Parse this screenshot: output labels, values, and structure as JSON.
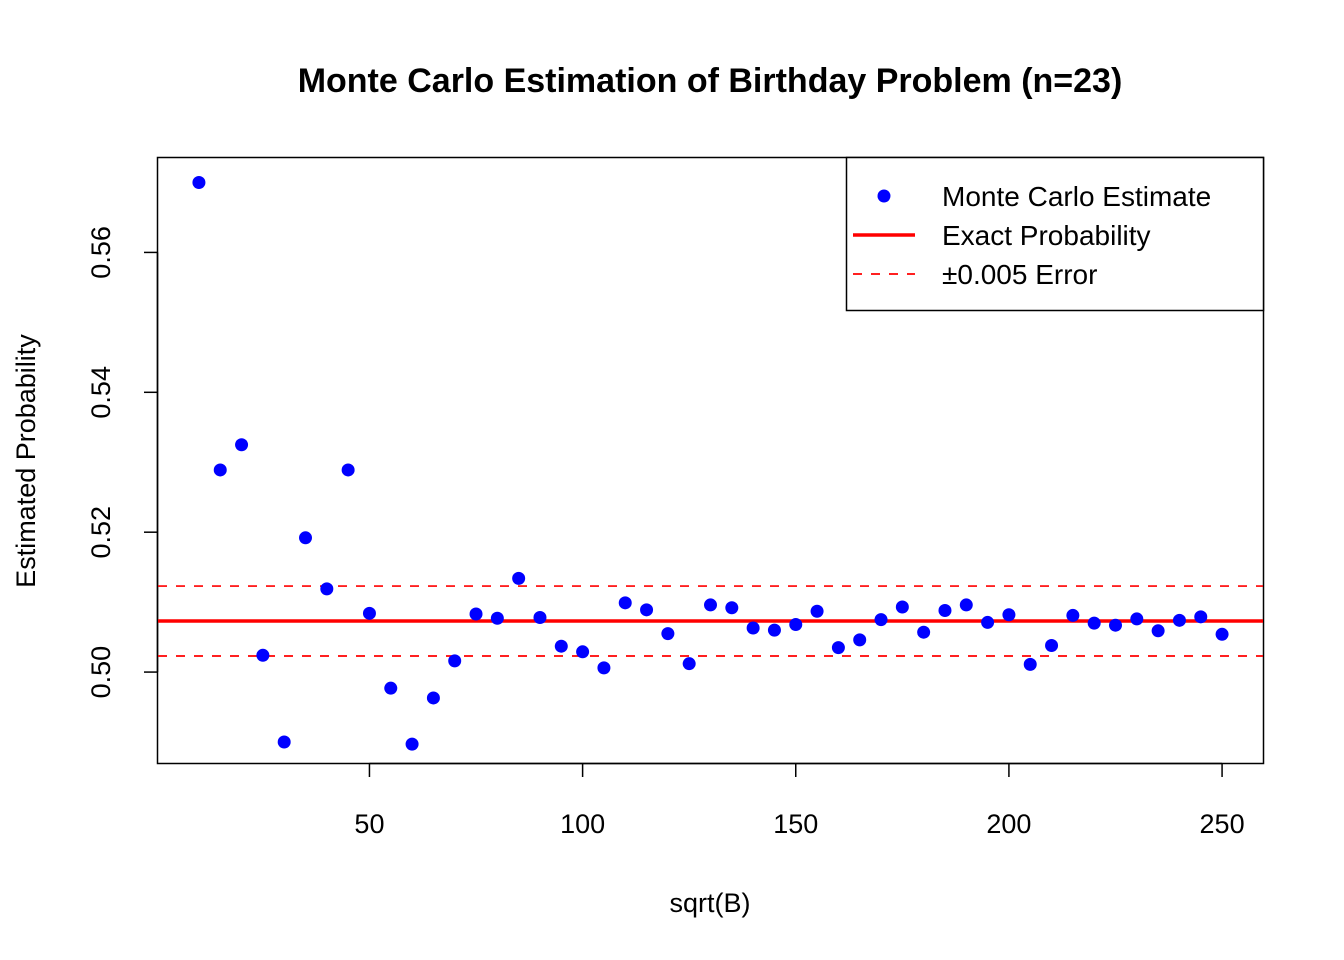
{
  "colors": {
    "points": "#0000ff",
    "exact_line": "#ff0000",
    "error_lines": "#ff0000",
    "axes": "#000000"
  },
  "chart_data": {
    "type": "scatter",
    "title": "Monte Carlo Estimation of Birthday Problem (n=23)",
    "xlabel": "sqrt(B)",
    "ylabel": "Estimated Probability",
    "xlim": [
      0.4,
      259.6
    ],
    "ylim": [
      0.487,
      0.5735
    ],
    "xticks": [
      50,
      100,
      150,
      200,
      250
    ],
    "yticks": [
      0.5,
      0.52,
      0.54,
      0.56
    ],
    "xtick_labels": [
      "50",
      "100",
      "150",
      "200",
      "250"
    ],
    "ytick_labels": [
      "0.50",
      "0.52",
      "0.54",
      "0.56"
    ],
    "grid": false,
    "legend_position": "top-right",
    "series": [
      {
        "name": "Monte Carlo Estimate",
        "kind": "points",
        "color": "#0000ff",
        "x": [
          10,
          15,
          20,
          25,
          30,
          35,
          40,
          45,
          50,
          55,
          60,
          65,
          70,
          75,
          80,
          85,
          90,
          95,
          100,
          105,
          110,
          115,
          120,
          125,
          130,
          135,
          140,
          145,
          150,
          155,
          160,
          165,
          170,
          175,
          180,
          185,
          190,
          195,
          200,
          205,
          210,
          215,
          220,
          225,
          230,
          235,
          240,
          245,
          250
        ],
        "y": [
          0.57,
          0.5289,
          0.5325,
          0.5024,
          0.49,
          0.5192,
          0.5119,
          0.5289,
          0.5084,
          0.4977,
          0.4897,
          0.4963,
          0.5016,
          0.5083,
          0.5077,
          0.5134,
          0.5078,
          0.5037,
          0.5029,
          0.5006,
          0.5099,
          0.5089,
          0.5055,
          0.5012,
          0.5096,
          0.5092,
          0.5063,
          0.506,
          0.5068,
          0.5087,
          0.5035,
          0.5046,
          0.5075,
          0.5093,
          0.5057,
          0.5088,
          0.5096,
          0.5071,
          0.5082,
          0.5011,
          0.5038,
          0.5081,
          0.507,
          0.5067,
          0.5076,
          0.5059,
          0.5074,
          0.5079,
          0.5054
        ]
      },
      {
        "name": "Exact Probability",
        "kind": "hline",
        "color": "#ff0000",
        "y": 0.5073
      },
      {
        "name": "±0.005 Error",
        "kind": "hline-dashed",
        "color": "#ff0000",
        "y": [
          0.5023,
          0.5123
        ]
      }
    ],
    "legend": [
      {
        "label": "Monte Carlo Estimate",
        "symbol": "point"
      },
      {
        "label": "Exact Probability",
        "symbol": "solid-line"
      },
      {
        "label": "±0.005 Error",
        "symbol": "dashed-line"
      }
    ]
  }
}
